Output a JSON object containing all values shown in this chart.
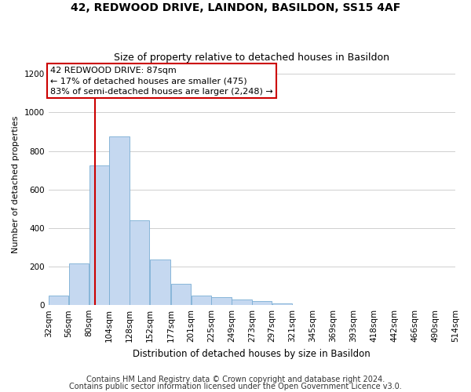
{
  "title": "42, REDWOOD DRIVE, LAINDON, BASILDON, SS15 4AF",
  "subtitle": "Size of property relative to detached houses in Basildon",
  "xlabel": "Distribution of detached houses by size in Basildon",
  "ylabel": "Number of detached properties",
  "footer_line1": "Contains HM Land Registry data © Crown copyright and database right 2024.",
  "footer_line2": "Contains public sector information licensed under the Open Government Licence v3.0.",
  "annotation_line1": "42 REDWOOD DRIVE: 87sqm",
  "annotation_line2": "← 17% of detached houses are smaller (475)",
  "annotation_line3": "83% of semi-detached houses are larger (2,248) →",
  "bin_edges": [
    32,
    56,
    80,
    104,
    128,
    152,
    177,
    201,
    225,
    249,
    273,
    297,
    321,
    345,
    369,
    393,
    418,
    442,
    466,
    490,
    514
  ],
  "bar_heights": [
    50,
    215,
    725,
    875,
    440,
    235,
    110,
    50,
    40,
    30,
    20,
    10,
    0,
    0,
    0,
    0,
    0,
    0,
    0,
    0
  ],
  "bar_color": "#c5d8f0",
  "bar_edgecolor": "#7aadd4",
  "vline_color": "#cc0000",
  "vline_x": 87,
  "annotation_box_edgecolor": "#cc0000",
  "annotation_box_facecolor": "#ffffff",
  "title_fontsize": 10,
  "subtitle_fontsize": 9,
  "ylabel_fontsize": 8,
  "xlabel_fontsize": 8.5,
  "tick_fontsize": 7.5,
  "annotation_fontsize": 8,
  "footer_fontsize": 7,
  "ylim": [
    0,
    1250
  ],
  "yticks": [
    0,
    200,
    400,
    600,
    800,
    1000,
    1200
  ],
  "bg_color": "#ffffff",
  "grid_color": "#c8c8c8"
}
